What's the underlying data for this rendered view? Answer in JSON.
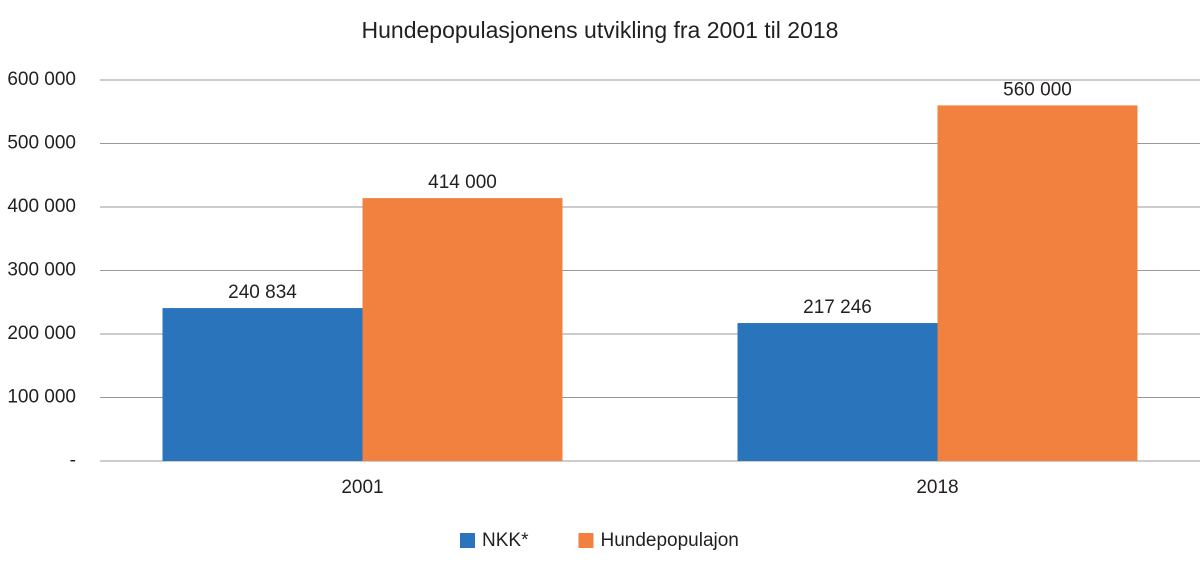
{
  "chart_data": {
    "type": "bar",
    "title": "Hundepopulasjonens utvikling fra 2001 til 2018",
    "categories": [
      "2001",
      "2018"
    ],
    "series": [
      {
        "name": "NKK*",
        "color": "#2a74bb",
        "values": [
          240834,
          217246
        ],
        "value_labels": [
          "240 834",
          "217 246"
        ]
      },
      {
        "name": "Hundepopulajon",
        "color": "#f28140",
        "values": [
          414000,
          560000
        ],
        "value_labels": [
          "414 000",
          "560 000"
        ]
      }
    ],
    "ylim": [
      0,
      600000
    ],
    "yticks": [
      {
        "value": 0,
        "label": "-"
      },
      {
        "value": 100000,
        "label": "100 000"
      },
      {
        "value": 200000,
        "label": "200 000"
      },
      {
        "value": 300000,
        "label": "300 000"
      },
      {
        "value": 400000,
        "label": "400 000"
      },
      {
        "value": 500000,
        "label": "500 000"
      },
      {
        "value": 600000,
        "label": "600 000"
      }
    ],
    "grid": true,
    "legend": "bottom"
  }
}
